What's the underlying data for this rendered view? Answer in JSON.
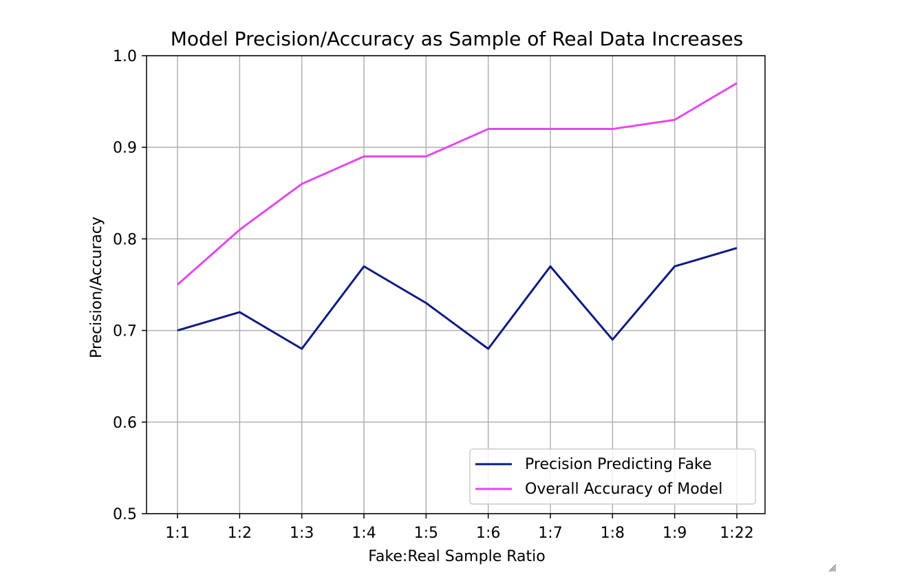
{
  "chart_data": {
    "type": "line",
    "title": "Model Precision/Accuracy as Sample of Real Data Increases",
    "xlabel": "Fake:Real Sample Ratio",
    "ylabel": "Precision/Accuracy",
    "categories": [
      "1:1",
      "1:2",
      "1:3",
      "1:4",
      "1:5",
      "1:6",
      "1:7",
      "1:8",
      "1:9",
      "1:22"
    ],
    "ylim": [
      0.5,
      1.0
    ],
    "yticks": [
      "0.5",
      "0.6",
      "0.7",
      "0.8",
      "0.9",
      "1.0"
    ],
    "grid": true,
    "legend_position": "lower-right",
    "series": [
      {
        "name": "Precision Predicting Fake",
        "color": "#0d1a80",
        "values": [
          0.7,
          0.72,
          0.68,
          0.77,
          0.73,
          0.68,
          0.77,
          0.69,
          0.77,
          0.79
        ]
      },
      {
        "name": "Overall Accuracy of Model",
        "color": "#e546f0",
        "values": [
          0.75,
          0.81,
          0.86,
          0.89,
          0.89,
          0.92,
          0.92,
          0.92,
          0.93,
          0.97
        ]
      }
    ]
  },
  "icons": {
    "resize_handle": "resize-grip-icon"
  }
}
